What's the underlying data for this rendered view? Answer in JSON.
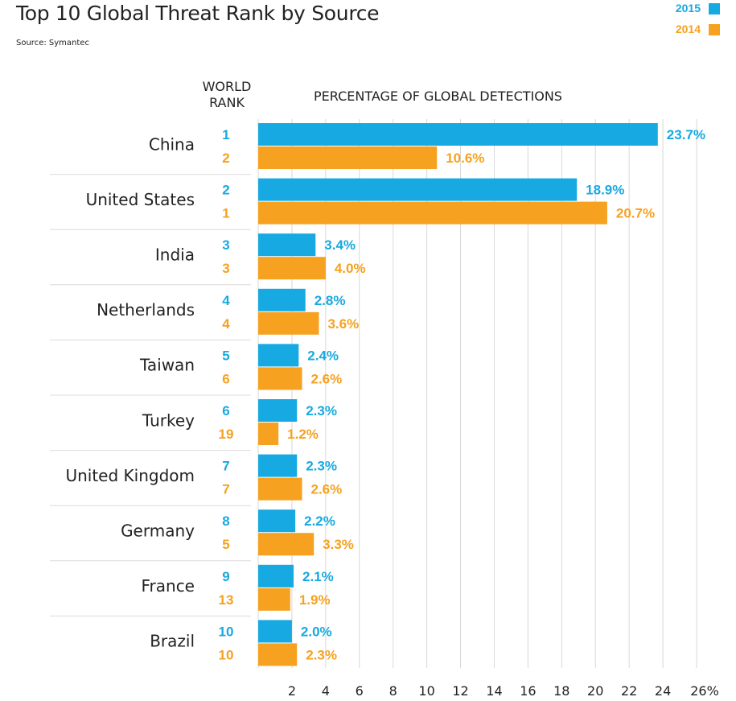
{
  "chart_data": {
    "type": "bar",
    "title": "Top 10 Global Threat Rank by Source",
    "subtitle": "Source: Symantec",
    "rank_header": "WORLD RANK",
    "xlabel": "PERCENTAGE OF GLOBAL DETECTIONS",
    "xlim": [
      0,
      26
    ],
    "xticks": [
      "2",
      "4",
      "6",
      "8",
      "10",
      "12",
      "14",
      "16",
      "18",
      "20",
      "22",
      "24",
      "26%"
    ],
    "xtick_values": [
      2,
      4,
      6,
      8,
      10,
      12,
      14,
      16,
      18,
      20,
      22,
      24,
      26
    ],
    "grid": true,
    "legend_position": "top-right",
    "categories": [
      "China",
      "United States",
      "India",
      "Netherlands",
      "Taiwan",
      "Turkey",
      "United Kingdom",
      "Germany",
      "France",
      "Brazil"
    ],
    "series": [
      {
        "name": "2015",
        "color": "#17a9e1",
        "values": [
          23.7,
          18.9,
          3.4,
          2.8,
          2.4,
          2.3,
          2.3,
          2.2,
          2.1,
          2.0
        ],
        "labels": [
          "23.7%",
          "18.9%",
          "3.4%",
          "2.8%",
          "2.4%",
          "2.3%",
          "2.3%",
          "2.2%",
          "2.1%",
          "2.0%"
        ],
        "ranks": [
          "1",
          "2",
          "3",
          "4",
          "5",
          "6",
          "7",
          "8",
          "9",
          "10"
        ]
      },
      {
        "name": "2014",
        "color": "#f6a11f",
        "values": [
          10.6,
          20.7,
          4.0,
          3.6,
          2.6,
          1.2,
          2.6,
          3.3,
          1.9,
          2.3
        ],
        "labels": [
          "10.6%",
          "20.7%",
          "4.0%",
          "3.6%",
          "2.6%",
          "1.2%",
          "2.6%",
          "3.3%",
          "1.9%",
          "2.3%"
        ],
        "ranks": [
          "2",
          "1",
          "3",
          "4",
          "6",
          "19",
          "7",
          "5",
          "13",
          "10"
        ]
      }
    ]
  }
}
